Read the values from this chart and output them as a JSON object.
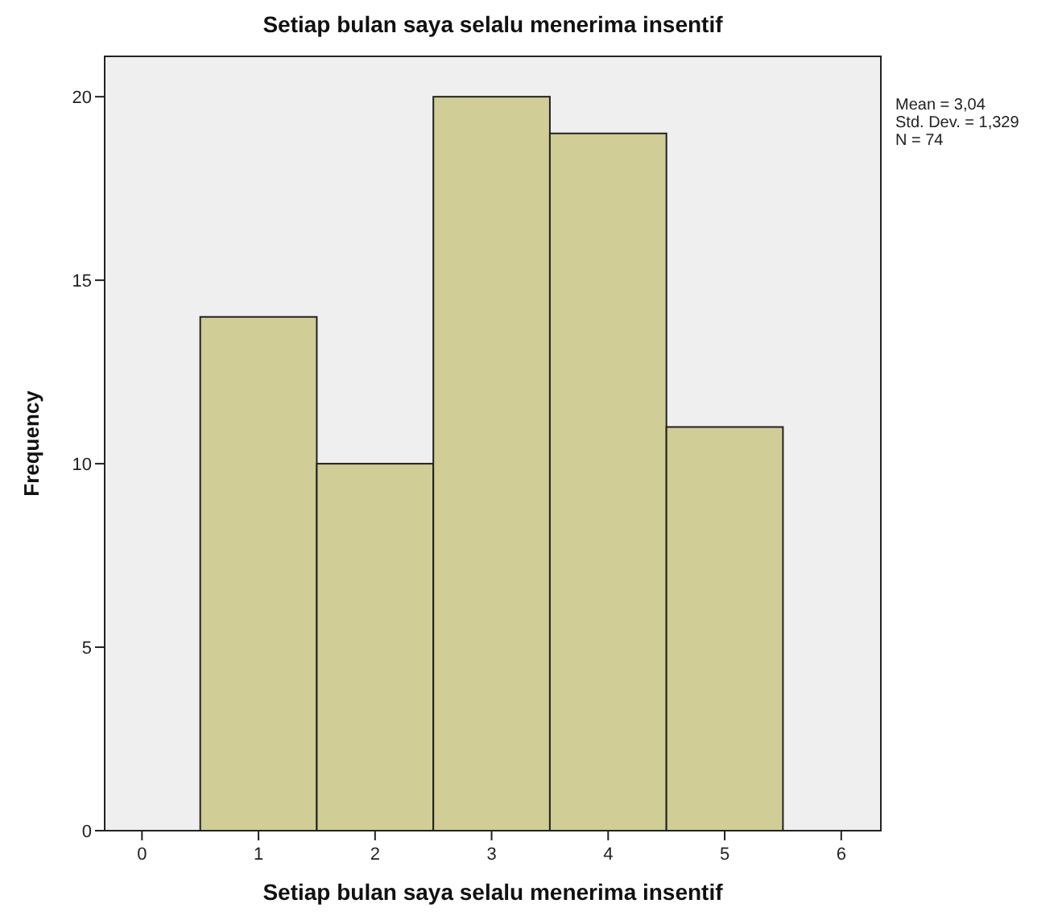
{
  "chart_data": {
    "type": "histogram",
    "title": "Setiap bulan saya selalu menerima insentif",
    "xlabel": "Setiap bulan saya selalu menerima insentif",
    "ylabel": "Frequency",
    "bins": [
      0.5,
      1.5,
      2.5,
      3.5,
      4.5,
      5.5
    ],
    "values": [
      14,
      10,
      20,
      19,
      11
    ],
    "color": "#d0cd96",
    "xlim": [
      -0.32,
      6.34
    ],
    "xticks": [
      0,
      1,
      2,
      3,
      4,
      5,
      6
    ],
    "ylim": [
      0,
      21.1
    ],
    "yticks": [
      0,
      5,
      10,
      15,
      20
    ],
    "grid": false,
    "annotations": [
      "Mean = 3,04",
      "Std. Dev. = 1,329",
      "N = 74"
    ]
  }
}
